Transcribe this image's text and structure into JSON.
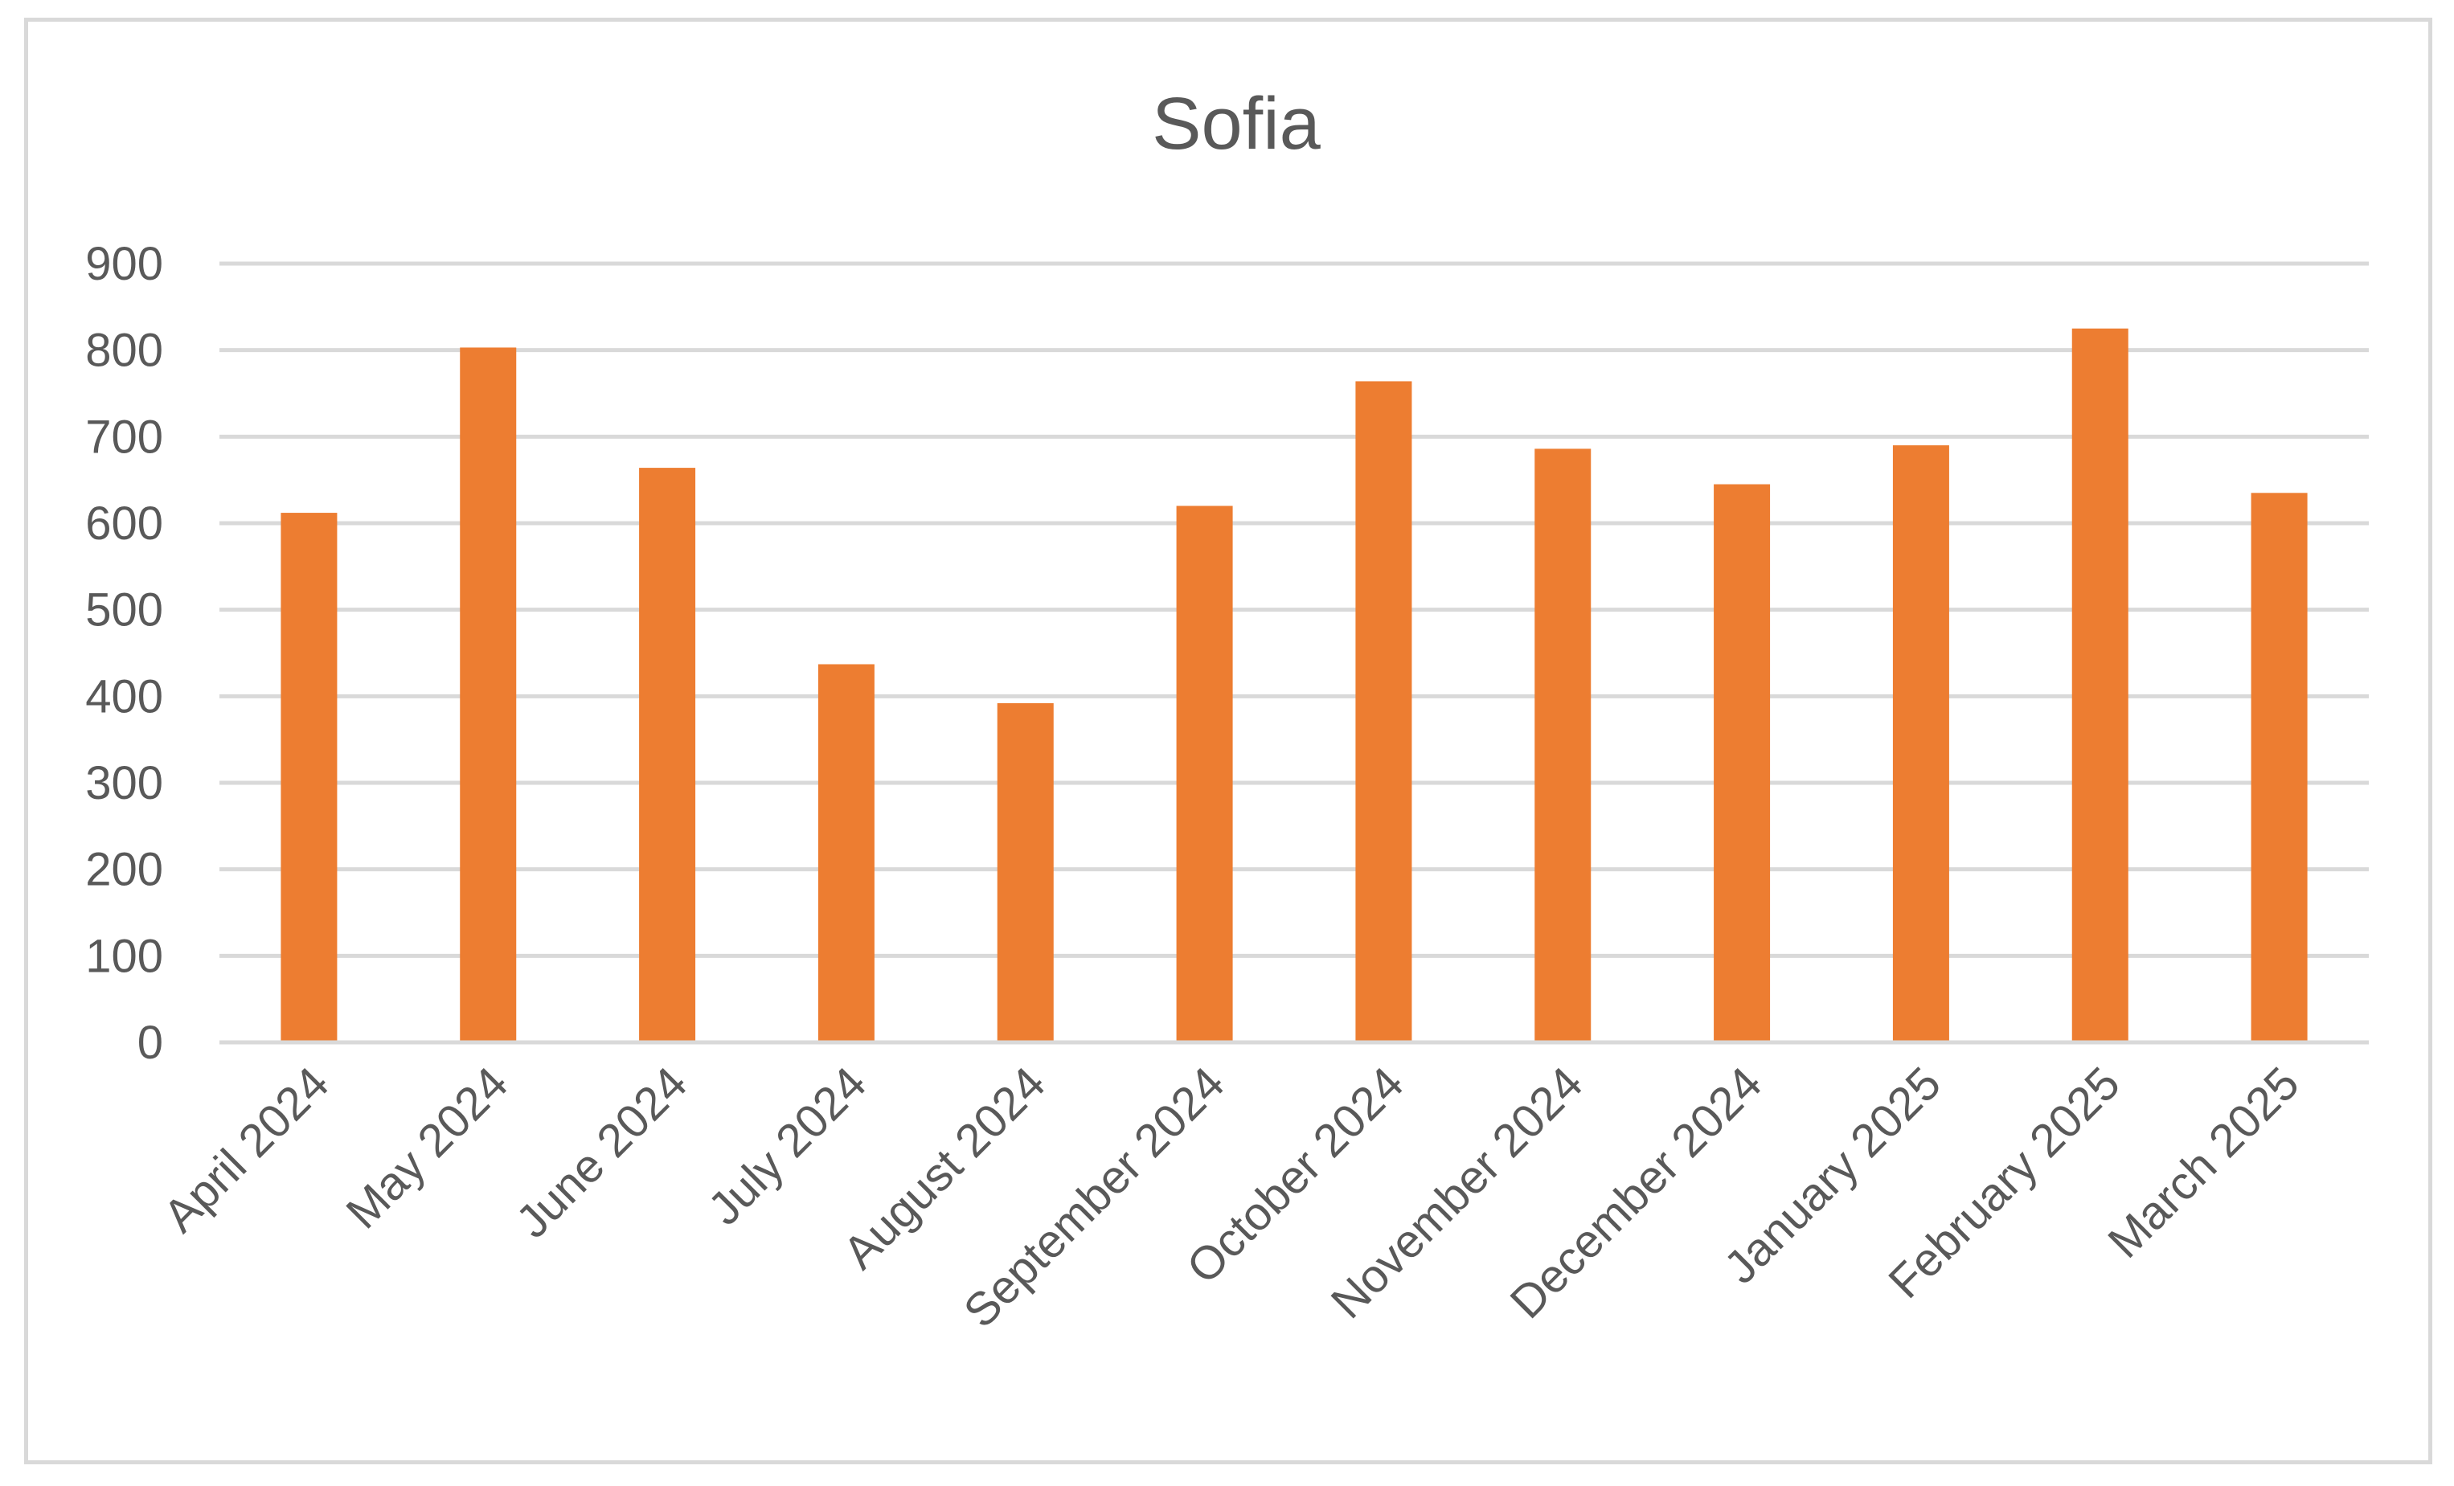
{
  "chart_data": {
    "type": "bar",
    "title": "Sofia",
    "xlabel": "",
    "ylabel": "",
    "ylim": [
      0,
      900
    ],
    "yticks": [
      0,
      100,
      200,
      300,
      400,
      500,
      600,
      700,
      800,
      900
    ],
    "grid": true,
    "legend": "none",
    "bar_color": "#ED7D31",
    "grid_color": "#d9d9d9",
    "text_color": "#595959",
    "categories": [
      "April 2024",
      "May 2024",
      "June 2024",
      "July 2024",
      "August 2024",
      "September 2024",
      "October 2024",
      "November 2024",
      "December 2024",
      "January 2025",
      "February 2025",
      "March 2025"
    ],
    "values": [
      612,
      803,
      664,
      437,
      392,
      620,
      764,
      686,
      645,
      690,
      825,
      635
    ]
  }
}
